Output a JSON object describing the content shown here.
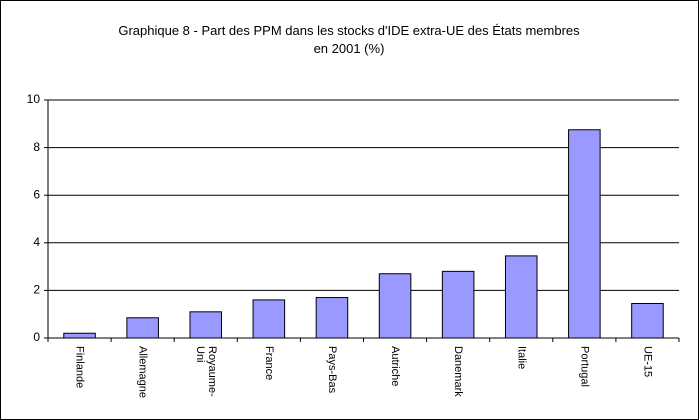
{
  "chart_data": {
    "type": "bar",
    "title": "Graphique 8 - Part des PPM dans les stocks d'IDE extra-UE des États membres en 2001 (%)",
    "categories": [
      "Finlande",
      "Allemagne",
      "Royaume-Uni",
      "France",
      "Pays-Bas",
      "Autriche",
      "Danemark",
      "Italie",
      "Portugal",
      "UE-15"
    ],
    "values": [
      0.2,
      0.85,
      1.1,
      1.6,
      1.7,
      2.7,
      2.8,
      3.45,
      8.75,
      1.45
    ],
    "color": "#9999ff",
    "ylim": [
      0,
      10
    ],
    "yticks": [
      0,
      2,
      4,
      6,
      8,
      10
    ],
    "grid": true
  }
}
